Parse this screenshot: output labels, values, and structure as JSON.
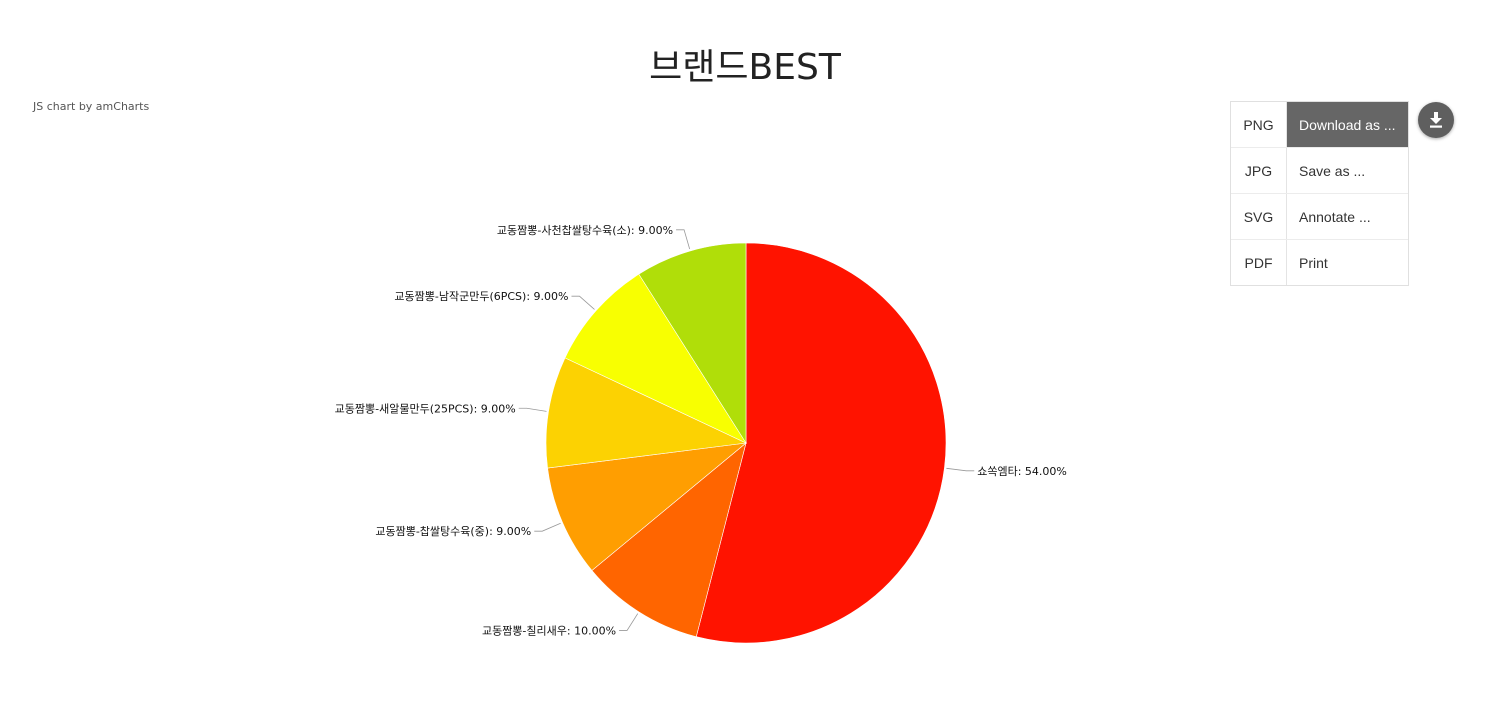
{
  "chart_data": {
    "type": "pie",
    "title": "브랜드BEST",
    "slices": [
      {
        "label": "쇼쏙엠타",
        "value": 54.0,
        "display": "쇼쏙엠타: 54.00%",
        "color": "#FF1300"
      },
      {
        "label": "교동짬뽕-칠리새우",
        "value": 10.0,
        "display": "교동짬뽕-칠리새우: 10.00%",
        "color": "#FF6500"
      },
      {
        "label": "교동짬뽕-찹쌀탕수육(중)",
        "value": 9.0,
        "display": "교동짬뽕-찹쌀탕수육(중): 9.00%",
        "color": "#FF9E01"
      },
      {
        "label": "교동짬뽕-새알물만두(25PCS)",
        "value": 9.0,
        "display": "교동짬뽕-새알물만두(25PCS): 9.00%",
        "color": "#FCD202"
      },
      {
        "label": "교동짬뽕-남작군만두(6PCS)",
        "value": 9.0,
        "display": "교동짬뽕-남작군만두(6PCS): 9.00%",
        "color": "#F8FF01"
      },
      {
        "label": "교동짬뽕-사천찹쌀탕수육(소)",
        "value": 9.0,
        "display": "교동짬뽕-사천찹쌀탕수육(소): 9.00%",
        "color": "#B0DE09"
      }
    ],
    "legend": "none"
  },
  "credit": "JS chart by amCharts",
  "export_menu": {
    "rows": [
      {
        "format": "PNG",
        "action": "Download as ..."
      },
      {
        "format": "JPG",
        "action": "Save as ..."
      },
      {
        "format": "SVG",
        "action": "Annotate ..."
      },
      {
        "format": "PDF",
        "action": "Print"
      }
    ],
    "button_icon": "download-icon"
  }
}
